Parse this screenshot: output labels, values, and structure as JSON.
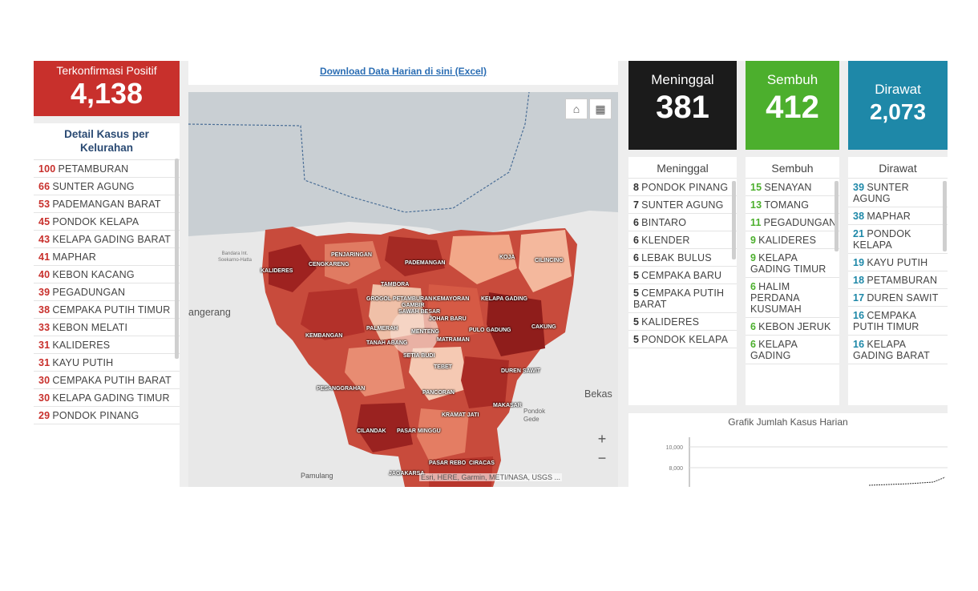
{
  "confirmed": {
    "title": "Terkonfirmasi Positif",
    "value": "4,138",
    "color": "#c8302c"
  },
  "detail": {
    "title": "Detail Kasus per Kelurahan",
    "items": [
      {
        "num": "100",
        "name": "PETAMBURAN"
      },
      {
        "num": "66",
        "name": "SUNTER AGUNG"
      },
      {
        "num": "53",
        "name": "PADEMANGAN BARAT"
      },
      {
        "num": "45",
        "name": "PONDOK KELAPA"
      },
      {
        "num": "43",
        "name": "KELAPA GADING BARAT"
      },
      {
        "num": "41",
        "name": "MAPHAR"
      },
      {
        "num": "40",
        "name": "KEBON KACANG"
      },
      {
        "num": "39",
        "name": "PEGADUNGAN"
      },
      {
        "num": "38",
        "name": "CEMPAKA PUTIH TIMUR"
      },
      {
        "num": "33",
        "name": "KEBON MELATI"
      },
      {
        "num": "31",
        "name": "KALIDERES"
      },
      {
        "num": "31",
        "name": "KAYU PUTIH"
      },
      {
        "num": "30",
        "name": "CEMPAKA PUTIH BARAT"
      },
      {
        "num": "30",
        "name": "KELAPA GADING TIMUR"
      },
      {
        "num": "29",
        "name": "PONDOK PINANG"
      }
    ]
  },
  "download_link": "Download Data Harian di sini (Excel)",
  "map": {
    "attribution": "Esri, HERE, Garmin, METI/NASA, USGS ...",
    "zoom_in": "+",
    "zoom_out": "−",
    "places": {
      "tangerang": "angerang",
      "bekasi": "Bekas",
      "pamulang": "Pamulang",
      "pondok_gede": "Pondok Gede",
      "bandara": "Bandara Int. Soekarno-Hatta"
    },
    "labels": [
      "PENJARINGAN",
      "KALIDERES",
      "CENGKARENG",
      "PADEMANGAN",
      "KOJA",
      "CILINCING",
      "TAMBORA",
      "GROGOL PETAMBURAN",
      "KEMAYORAN",
      "KELAPA GADING",
      "GAMBIR",
      "SAWAH BESAR",
      "JOHAR BARU",
      "KEMBANGAN",
      "PALMERAH",
      "MENTENG",
      "PULO GADUNG",
      "CAKUNG",
      "TANAH ABANG",
      "MATRAMAN",
      "SETIA BUDI",
      "TEBET",
      "DUREN SAWIT",
      "PESANGGRAHAN",
      "PANCORAN",
      "MAKASAR",
      "KRAMAT JATI",
      "CILANDAK",
      "PASAR MINGGU",
      "PASAR REBO",
      "CIRACAS",
      "JAGAKARSA"
    ]
  },
  "deaths": {
    "title": "Meninggal",
    "value": "381",
    "color": "#1b1b1b",
    "list_title": "Meninggal",
    "items": [
      {
        "num": "8",
        "name": "PONDOK PINANG"
      },
      {
        "num": "7",
        "name": "SUNTER AGUNG"
      },
      {
        "num": "6",
        "name": "BINTARO"
      },
      {
        "num": "6",
        "name": "KLENDER"
      },
      {
        "num": "6",
        "name": "LEBAK BULUS"
      },
      {
        "num": "5",
        "name": "CEMPAKA BARU"
      },
      {
        "num": "5",
        "name": "CEMPAKA PUTIH BARAT"
      },
      {
        "num": "5",
        "name": "KALIDERES"
      },
      {
        "num": "5",
        "name": "PONDOK KELAPA"
      }
    ]
  },
  "recovered": {
    "title": "Sembuh",
    "value": "412",
    "color": "#4caf2d",
    "list_title": "Sembuh",
    "items": [
      {
        "num": "15",
        "name": "SENAYAN"
      },
      {
        "num": "13",
        "name": "TOMANG"
      },
      {
        "num": "11",
        "name": "PEGADUNGAN"
      },
      {
        "num": "9",
        "name": "KALIDERES"
      },
      {
        "num": "9",
        "name": "KELAPA GADING TIMUR"
      },
      {
        "num": "6",
        "name": "HALIM PERDANA KUSUMAH"
      },
      {
        "num": "6",
        "name": "KEBON JERUK"
      },
      {
        "num": "6",
        "name": "KELAPA GADING"
      }
    ]
  },
  "treated": {
    "title": "Dirawat",
    "value": "2,073",
    "color": "#1e88a8",
    "list_title": "Dirawat",
    "items": [
      {
        "num": "39",
        "name": "SUNTER AGUNG"
      },
      {
        "num": "38",
        "name": "MAPHAR"
      },
      {
        "num": "21",
        "name": "PONDOK KELAPA"
      },
      {
        "num": "19",
        "name": "KAYU PUTIH"
      },
      {
        "num": "18",
        "name": "PETAMBURAN"
      },
      {
        "num": "17",
        "name": "DUREN SAWIT"
      },
      {
        "num": "16",
        "name": "CEMPAKA PUTIH TIMUR"
      },
      {
        "num": "16",
        "name": "KELAPA GADING BARAT"
      }
    ]
  },
  "chart_data": {
    "type": "line",
    "title": "Grafik Jumlah Kasus Harian",
    "y_ticks": [
      "10,000",
      "8,000"
    ],
    "ylim": [
      6000,
      10000
    ]
  }
}
